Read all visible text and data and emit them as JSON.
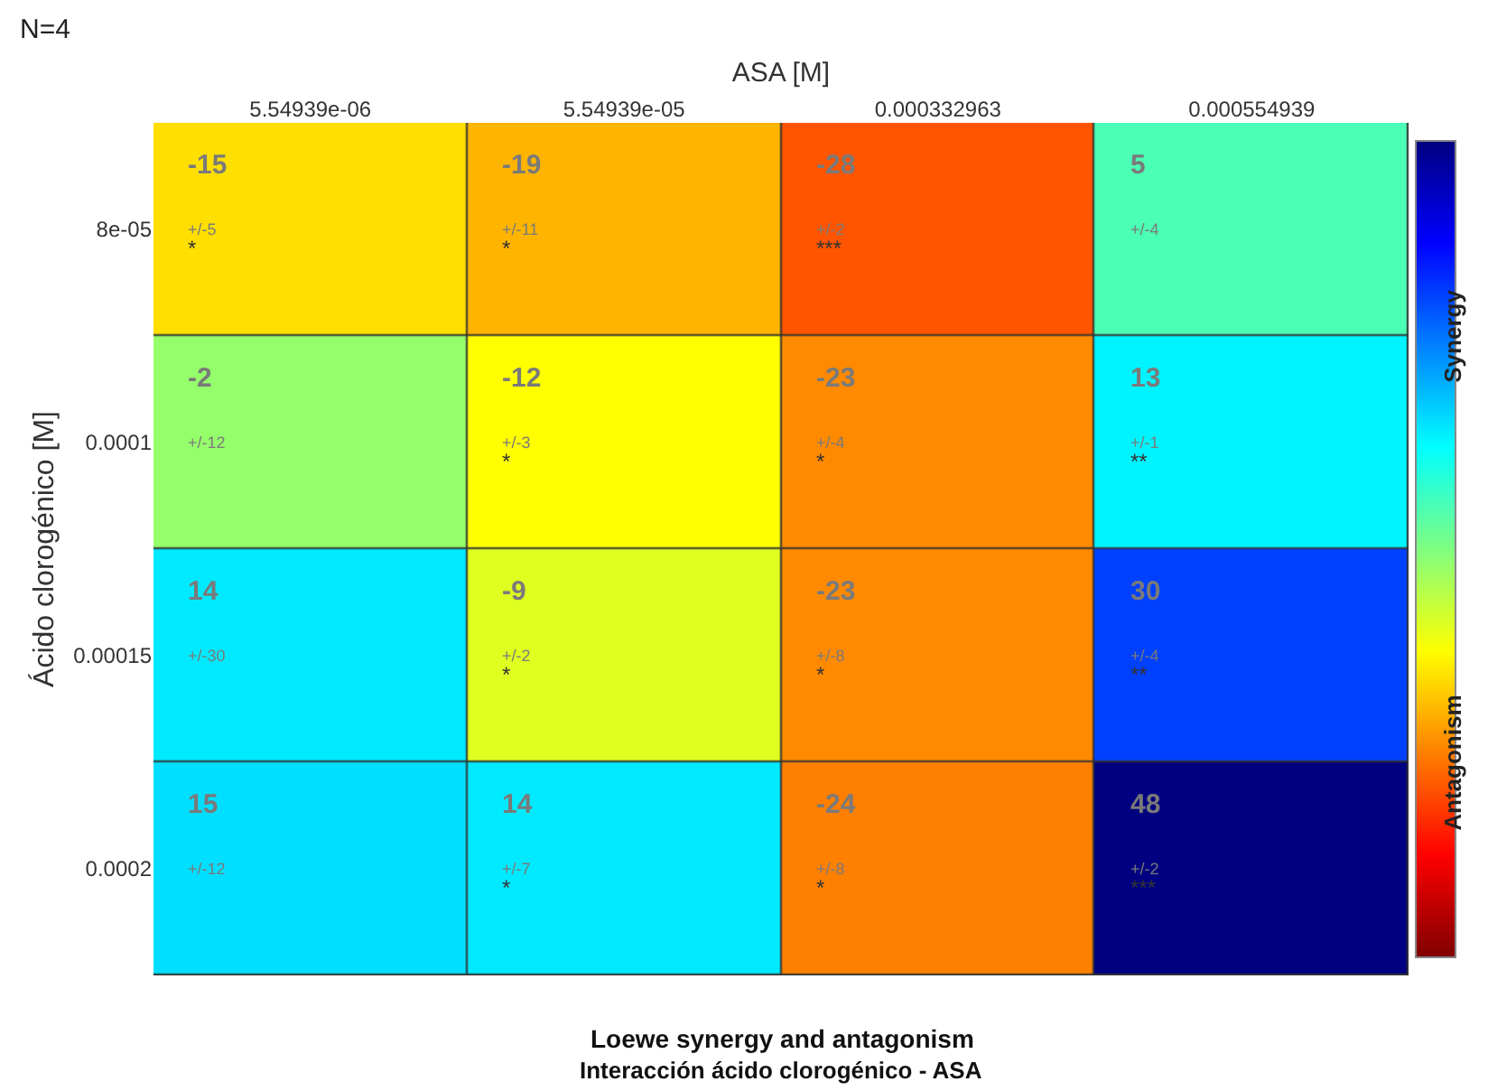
{
  "chart_data": {
    "type": "heatmap",
    "title": "Loewe synergy and antagonism",
    "subtitle": "Interacción ácido clorogénico - ASA",
    "xlabel": "ASA [M]",
    "ylabel": "Ácido clorogénico [M]",
    "categories": [
      "5.54939e-06",
      "5.54939e-05",
      "0.000332963",
      "0.000554939"
    ],
    "y_categories": [
      "8e-05",
      "0.0001",
      "0.00015",
      "0.0002"
    ],
    "cells": [
      [
        -15,
        -19,
        -28,
        5
      ],
      [
        -2,
        -12,
        -23,
        13
      ],
      [
        14,
        -9,
        -23,
        30
      ],
      [
        15,
        14,
        -24,
        48
      ]
    ],
    "data_labels": true,
    "annotations": [
      "N=4",
      "Synergy",
      "Antagonism",
      "+/-5\n*",
      "+/-11\n*",
      "+/-2\n***",
      "+/-4",
      "+/-12",
      "+/-3\n*",
      "+/-4\n*",
      "+/-1\n**",
      "+/-30",
      "+/-2\n*",
      "+/-8\n*",
      "+/-4\n**",
      "+/-12",
      "+/-7\n*",
      "+/-8\n*",
      "+/-2\n***"
    ]
  }
}
